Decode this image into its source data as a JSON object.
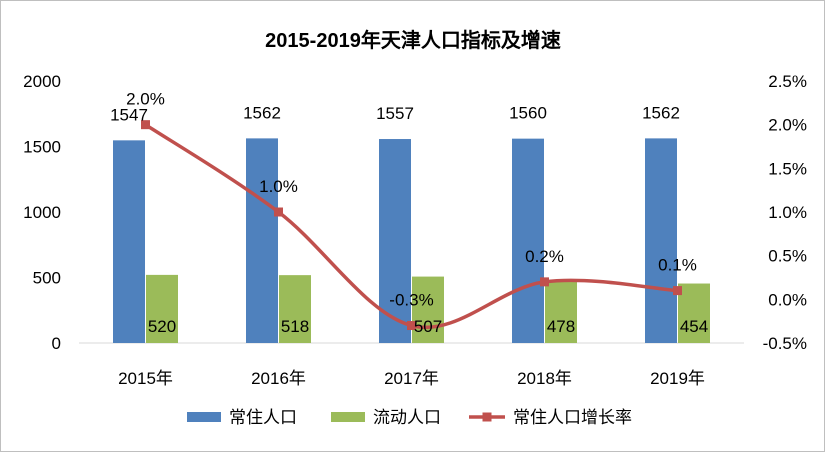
{
  "chart_data": {
    "type": "bar",
    "title": "2015-2019年天津人口指标及增速",
    "categories": [
      "2015年",
      "2016年",
      "2017年",
      "2018年",
      "2019年"
    ],
    "series": [
      {
        "name": "常住人口",
        "kind": "bar",
        "axis": "left",
        "color": "#4f81bd",
        "values": [
          1547,
          1562,
          1557,
          1560,
          1562
        ],
        "labels": [
          "1547",
          "1562",
          "1557",
          "1560",
          "1562"
        ]
      },
      {
        "name": "流动人口",
        "kind": "bar",
        "axis": "left",
        "color": "#9bbb59",
        "values": [
          520,
          518,
          507,
          478,
          454
        ],
        "labels": [
          "520",
          "518",
          "507",
          "478",
          "454"
        ]
      },
      {
        "name": "常住人口增长率",
        "kind": "line",
        "axis": "right",
        "color": "#c0504d",
        "values": [
          2.0,
          1.0,
          -0.3,
          0.2,
          0.1
        ],
        "labels": [
          "2.0%",
          "1.0%",
          "-0.3%",
          "0.2%",
          "0.1%"
        ]
      }
    ],
    "y_left": {
      "min": 0,
      "max": 2000,
      "ticks": [
        "0",
        "500",
        "1000",
        "1500",
        "2000"
      ]
    },
    "y_right": {
      "min": -0.5,
      "max": 2.5,
      "ticks": [
        "-0.5%",
        "0.0%",
        "0.5%",
        "1.0%",
        "1.5%",
        "2.0%",
        "2.5%"
      ]
    },
    "grid": false,
    "legend": "bottom"
  }
}
